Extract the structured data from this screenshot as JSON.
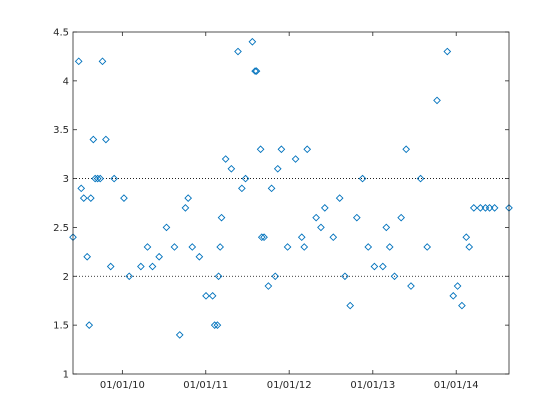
{
  "chart_data": {
    "type": "scatter",
    "title": "",
    "xlabel": "",
    "ylabel": "",
    "x_axis_type": "date",
    "xlim": [
      "2009-05-30",
      "2014-08-20"
    ],
    "ylim": [
      1,
      4.5
    ],
    "grid": false,
    "box": true,
    "marker": "diamond-open",
    "marker_color": "#0072bd",
    "reference_lines_y": [
      2,
      3
    ],
    "reference_line_style": "dotted",
    "reference_line_color": "#000000",
    "x_ticks": [
      {
        "date": "2010-01-01",
        "label": "01/01/10"
      },
      {
        "date": "2011-01-01",
        "label": "01/01/11"
      },
      {
        "date": "2012-01-01",
        "label": "01/01/12"
      },
      {
        "date": "2013-01-01",
        "label": "01/01/13"
      },
      {
        "date": "2014-01-01",
        "label": "01/01/14"
      }
    ],
    "y_ticks": [
      {
        "value": 1,
        "label": "1"
      },
      {
        "value": 1.5,
        "label": "1.5"
      },
      {
        "value": 2,
        "label": "2"
      },
      {
        "value": 2.5,
        "label": "2.5"
      },
      {
        "value": 3,
        "label": "3"
      },
      {
        "value": 3.5,
        "label": "3.5"
      },
      {
        "value": 4,
        "label": "4"
      },
      {
        "value": 4.5,
        "label": "4.5"
      }
    ],
    "series": [
      {
        "x": [
          "2009-05-30",
          "2009-06-24",
          "2009-07-05",
          "2009-07-16",
          "2009-07-31",
          "2009-08-09",
          "2009-08-16",
          "2009-08-27",
          "2009-09-04",
          "2009-09-15",
          "2009-09-26",
          "2009-10-06",
          "2009-10-21",
          "2009-11-11",
          "2009-11-26",
          "2010-01-08",
          "2010-01-31",
          "2010-03-23",
          "2010-04-21",
          "2010-05-13",
          "2010-06-11",
          "2010-07-13",
          "2010-08-17",
          "2010-09-09",
          "2010-10-04",
          "2010-10-16",
          "2010-11-03",
          "2010-12-04",
          "2011-01-02",
          "2011-01-31",
          "2011-02-09",
          "2011-02-21",
          "2011-02-26",
          "2011-03-05",
          "2011-03-11",
          "2011-03-29",
          "2011-04-23",
          "2011-05-22",
          "2011-06-08",
          "2011-06-24",
          "2011-07-24",
          "2011-08-05",
          "2011-08-11",
          "2011-08-29",
          "2011-09-03",
          "2011-09-13",
          "2011-10-02",
          "2011-10-16",
          "2011-11-01",
          "2011-11-12",
          "2011-11-28",
          "2011-12-25",
          "2012-01-29",
          "2012-02-25",
          "2012-03-07",
          "2012-03-20",
          "2012-04-28",
          "2012-05-19",
          "2012-06-05",
          "2012-07-12",
          "2012-08-09",
          "2012-09-01",
          "2012-09-24",
          "2012-10-23",
          "2012-11-17",
          "2012-12-12",
          "2013-01-08",
          "2013-02-14",
          "2013-03-01",
          "2013-03-16",
          "2013-04-06",
          "2013-05-05",
          "2013-05-27",
          "2013-06-17",
          "2013-07-29",
          "2013-08-27",
          "2013-10-09",
          "2013-11-23",
          "2013-12-19",
          "2014-01-07",
          "2014-01-26",
          "2014-02-14",
          "2014-02-27",
          "2014-03-19",
          "2014-04-17",
          "2014-05-09",
          "2014-05-27",
          "2014-06-18",
          "2014-08-20"
        ],
        "y": [
          2.4,
          4.2,
          2.9,
          2.8,
          2.2,
          1.5,
          2.8,
          3.4,
          3.0,
          3.0,
          3.0,
          4.2,
          3.4,
          2.1,
          3.0,
          2.8,
          2.0,
          2.1,
          2.3,
          2.1,
          2.2,
          2.5,
          2.3,
          1.4,
          2.7,
          2.8,
          2.3,
          2.2,
          1.8,
          1.8,
          1.5,
          1.5,
          2.0,
          2.3,
          2.6,
          3.2,
          3.1,
          4.3,
          2.9,
          3.0,
          4.4,
          4.1,
          4.1,
          3.3,
          2.4,
          2.4,
          1.9,
          2.9,
          2.0,
          3.1,
          3.3,
          2.3,
          3.2,
          2.4,
          2.3,
          3.3,
          2.6,
          2.5,
          2.7,
          2.4,
          2.8,
          2.0,
          1.7,
          2.6,
          3.0,
          2.3,
          2.1,
          2.1,
          2.5,
          2.3,
          2.0,
          2.6,
          3.3,
          1.9,
          3.0,
          2.3,
          3.8,
          4.3,
          1.8,
          1.9,
          1.7,
          2.4,
          2.3,
          2.7,
          2.7,
          2.7,
          2.7,
          2.7,
          2.7
        ]
      }
    ]
  }
}
